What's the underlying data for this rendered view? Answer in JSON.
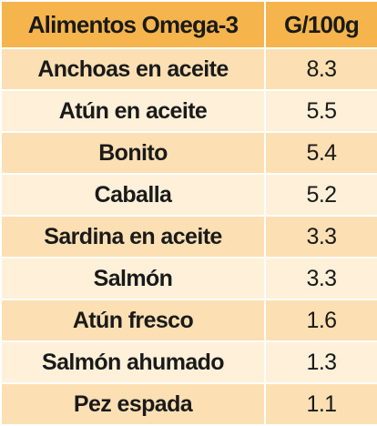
{
  "header": {
    "columns": [
      "Alimentos Omega-3",
      "G/100g"
    ]
  },
  "table": {
    "rows": [
      [
        "Anchoas en aceite",
        "8.3"
      ],
      [
        "Atún en aceite",
        "5.5"
      ],
      [
        "Bonito",
        "5.4"
      ],
      [
        "Caballa",
        "5.2"
      ],
      [
        "Sardina en aceite",
        "3.3"
      ],
      [
        "Salmón",
        "3.3"
      ],
      [
        "Atún fresco",
        "1.6"
      ],
      [
        "Salmón ahumado",
        "1.3"
      ],
      [
        "Pez espada",
        "1.1"
      ]
    ]
  }
}
